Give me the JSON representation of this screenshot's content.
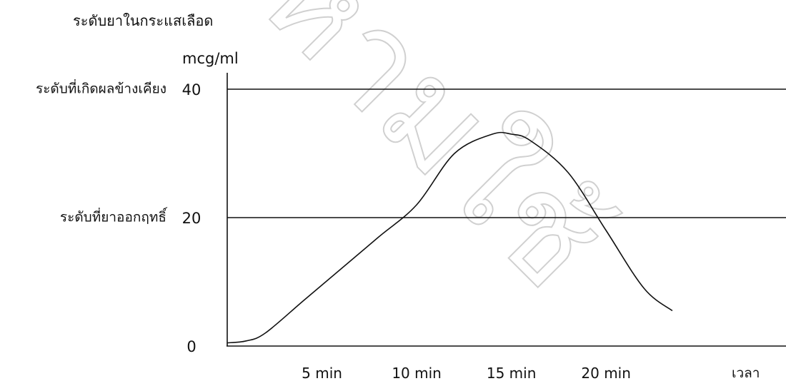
{
  "chart_data": {
    "type": "line",
    "title": "ระดับยาในกระแสเลือด",
    "ylabel": "mcg/ml",
    "xlabel": "เวลา",
    "x_ticks": [
      {
        "value": 5,
        "label": "5 min"
      },
      {
        "value": 10,
        "label": "10 min"
      },
      {
        "value": 15,
        "label": "15 min"
      },
      {
        "value": 20,
        "label": "20 min"
      }
    ],
    "y_ticks": [
      {
        "value": 0,
        "label": "0"
      },
      {
        "value": 20,
        "label": "20"
      },
      {
        "value": 40,
        "label": "40"
      }
    ],
    "reference_lines": [
      {
        "value": 40,
        "label": "ระดับที่เกิดผลข้างเคียง"
      },
      {
        "value": 20,
        "label": "ระดับที่ยาออกฤทธิ์"
      }
    ],
    "series": [
      {
        "x": [
          0,
          1,
          2,
          4,
          6,
          8,
          10,
          12,
          14,
          15,
          16,
          18,
          20,
          22,
          23.5
        ],
        "y": [
          0.5,
          0.8,
          2,
          7,
          12,
          17,
          22,
          30,
          33,
          33,
          32,
          27,
          18,
          9,
          5.5
        ]
      }
    ],
    "xlim": [
      0,
      29.5
    ],
    "ylim": [
      0,
      45
    ],
    "grid": false,
    "colors": {
      "line": "#111111",
      "axis": "#111111"
    }
  },
  "watermark": "ห้ามใช้"
}
